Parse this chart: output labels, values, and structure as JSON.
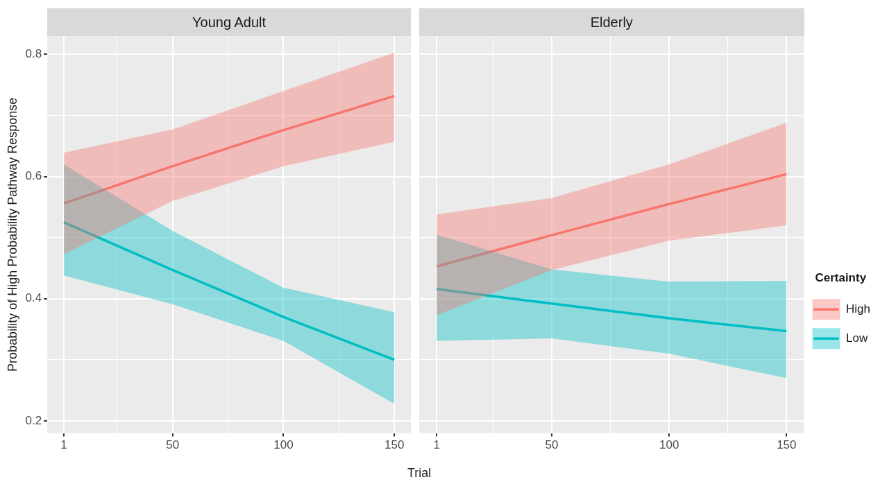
{
  "chart_data": [
    {
      "type": "line",
      "title": "Young Adult",
      "xlabel": "Trial",
      "ylabel": "Probability of High Probability Pathway Response",
      "xlim": [
        -6.45,
        157.45
      ],
      "ylim": [
        0.18,
        0.83
      ],
      "xticks": [
        1,
        {
          "value": 25,
          "label": null
        },
        50,
        {
          "value": 75,
          "label": null
        },
        100,
        {
          "value": 125,
          "label": null
        },
        150
      ],
      "yticks": [
        0.2,
        {
          "value": 0.3,
          "label": null
        },
        0.4,
        {
          "value": 0.5,
          "label": null
        },
        0.6,
        {
          "value": 0.7,
          "label": null
        },
        0.8
      ],
      "grid": true,
      "legend": false,
      "tick_labels": "xy",
      "series": [
        {
          "color": "#f8766d",
          "x": [
            1,
            50,
            100,
            150
          ],
          "values": [
            0.556,
            0.617,
            0.676,
            0.732
          ],
          "lower": [
            0.473,
            0.56,
            0.617,
            0.657
          ],
          "upper": [
            0.639,
            0.677,
            0.74,
            0.803
          ]
        },
        {
          "color": "#00bfc4",
          "x": [
            1,
            50,
            100,
            150
          ],
          "values": [
            0.525,
            0.447,
            0.37,
            0.3
          ],
          "lower": [
            0.438,
            0.391,
            0.331,
            0.228
          ],
          "upper": [
            0.62,
            0.511,
            0.418,
            0.378
          ]
        }
      ]
    },
    {
      "type": "line",
      "title": "Elderly",
      "legend_title": "Certainty",
      "xlim": [
        -6.45,
        157.45
      ],
      "ylim": [
        0.18,
        0.83
      ],
      "xticks": [
        1,
        {
          "value": 25,
          "label": null
        },
        50,
        {
          "value": 75,
          "label": null
        },
        100,
        {
          "value": 125,
          "label": null
        },
        150
      ],
      "yticks": [
        0.2,
        {
          "value": 0.3,
          "label": null
        },
        0.4,
        {
          "value": 0.5,
          "label": null
        },
        0.6,
        {
          "value": 0.7,
          "label": null
        },
        0.8
      ],
      "grid": true,
      "legend": "right",
      "tick_labels": "x",
      "series": [
        {
          "name": "High",
          "color": "#f8766d",
          "x": [
            1,
            50,
            100,
            150
          ],
          "values": [
            0.453,
            0.504,
            0.555,
            0.604
          ],
          "lower": [
            0.373,
            0.447,
            0.495,
            0.52
          ],
          "upper": [
            0.538,
            0.565,
            0.62,
            0.688
          ]
        },
        {
          "name": "Low",
          "color": "#00bfc4",
          "x": [
            1,
            50,
            100,
            150
          ],
          "values": [
            0.416,
            0.392,
            0.368,
            0.347
          ],
          "lower": [
            0.331,
            0.335,
            0.31,
            0.27
          ],
          "upper": [
            0.505,
            0.448,
            0.428,
            0.429
          ]
        }
      ]
    }
  ]
}
